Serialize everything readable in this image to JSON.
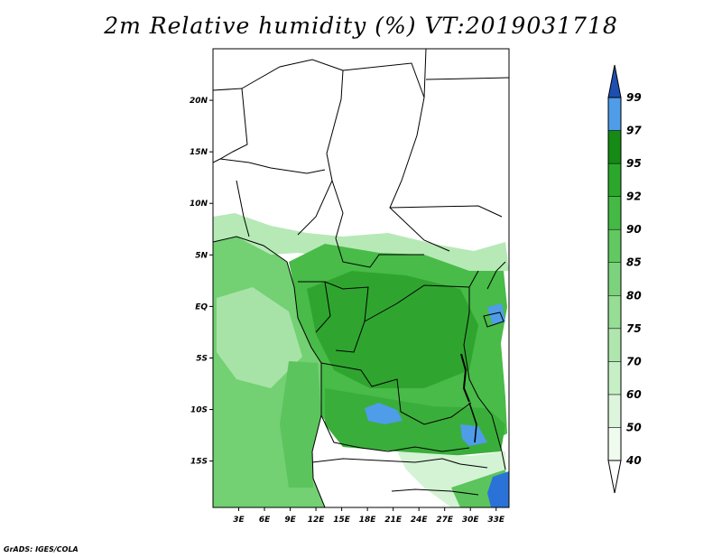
{
  "title": "2m Relative humidity (%) VT:2019031718",
  "credit": "GrADS: IGES/COLA",
  "map": {
    "lon_range": [
      0,
      34.5
    ],
    "lat_range": [
      -19.5,
      25
    ],
    "lat_ticks": [
      {
        "value": 20,
        "label": "20N"
      },
      {
        "value": 15,
        "label": "15N"
      },
      {
        "value": 10,
        "label": "10N"
      },
      {
        "value": 5,
        "label": "5N"
      },
      {
        "value": 0,
        "label": "EQ"
      },
      {
        "value": -5,
        "label": "5S"
      },
      {
        "value": -10,
        "label": "10S"
      },
      {
        "value": -15,
        "label": "15S"
      }
    ],
    "lon_ticks": [
      {
        "value": 3,
        "label": "3E"
      },
      {
        "value": 6,
        "label": "6E"
      },
      {
        "value": 9,
        "label": "9E"
      },
      {
        "value": 12,
        "label": "12E"
      },
      {
        "value": 15,
        "label": "15E"
      },
      {
        "value": 18,
        "label": "18E"
      },
      {
        "value": 21,
        "label": "21E"
      },
      {
        "value": 24,
        "label": "24E"
      },
      {
        "value": 27,
        "label": "27E"
      },
      {
        "value": 30,
        "label": "30E"
      },
      {
        "value": 33,
        "label": "33E"
      }
    ]
  },
  "colorbar": {
    "levels": [
      "40",
      "50",
      "60",
      "70",
      "75",
      "80",
      "85",
      "90",
      "92",
      "95",
      "97",
      "99"
    ],
    "colors": [
      "#f0fbf0",
      "#dcf5dc",
      "#c6efc6",
      "#aee6ae",
      "#96dd96",
      "#7dd37d",
      "#62c862",
      "#45b945",
      "#2ba82b",
      "#158a15",
      "#4f9ce8",
      "#2a72d8",
      "#1e4fb0"
    ],
    "below_color": "#ffffff",
    "above_color": "#1e4fb0"
  }
}
